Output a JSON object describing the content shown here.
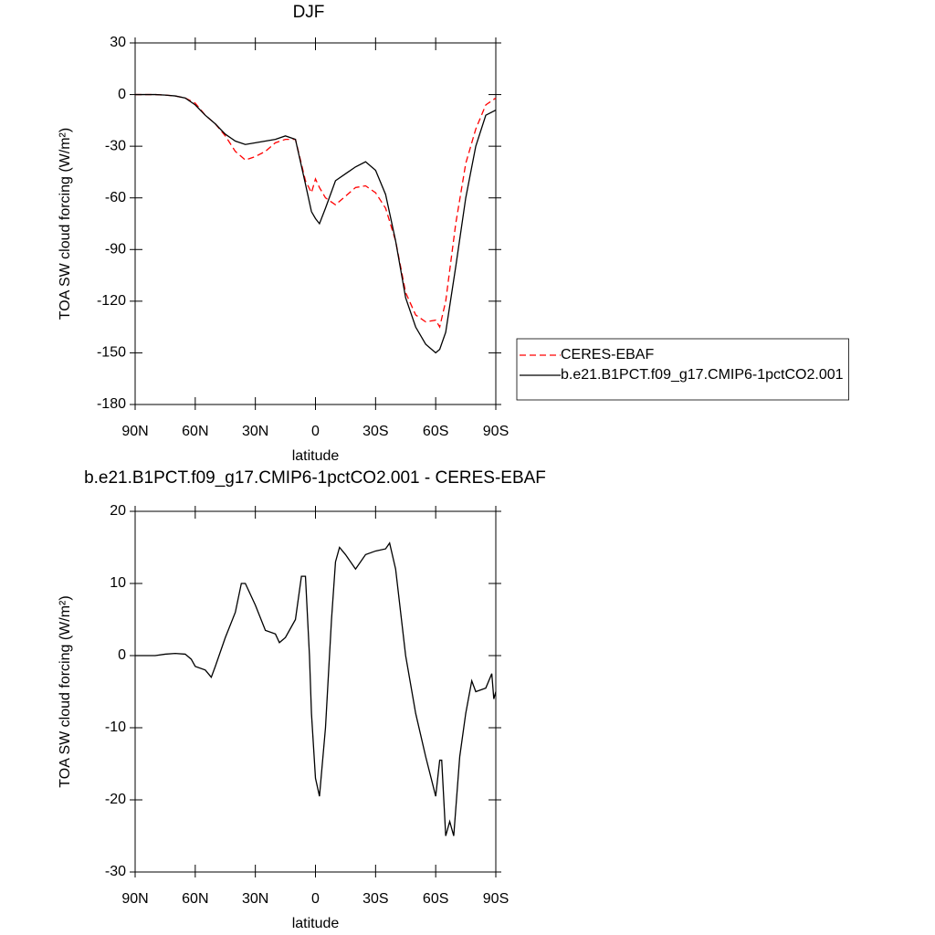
{
  "chart_data": [
    {
      "type": "line",
      "title": "DJF",
      "x_label": "latitude",
      "y_label": "TOA SW cloud forcing (W/m²)",
      "x": [
        90,
        85,
        80,
        75,
        70,
        65,
        60,
        55,
        50,
        45,
        40,
        35,
        30,
        25,
        20,
        15,
        10,
        5,
        2,
        0,
        -2,
        -5,
        -10,
        -15,
        -20,
        -25,
        -30,
        -35,
        -40,
        -45,
        -50,
        -55,
        -60,
        -62,
        -65,
        -70,
        -75,
        -80,
        -85,
        -90
      ],
      "series": [
        {
          "name": "CERES-EBAF",
          "color": "#ff0000",
          "dashed": true,
          "values": [
            0,
            0,
            0,
            -0.3,
            -0.8,
            -2,
            -5,
            -12,
            -17,
            -24,
            -33,
            -38,
            -36,
            -33,
            -28,
            -26,
            -26,
            -50,
            -57,
            -49,
            -54,
            -60,
            -64,
            -59,
            -54,
            -53,
            -57,
            -66,
            -85,
            -115,
            -128,
            -132,
            -131,
            -135,
            -120,
            -75,
            -40,
            -20,
            -6,
            -2
          ]
        },
        {
          "name": "b.e21.B1PCT.f09_g17.CMIP6-1pctCO2.001",
          "color": "#000000",
          "dashed": false,
          "values": [
            0,
            0,
            0,
            -0.3,
            -0.8,
            -2,
            -6,
            -12,
            -17,
            -23,
            -27,
            -29,
            -28,
            -27,
            -26,
            -24,
            -26,
            -52,
            -68,
            -72,
            -75,
            -66,
            -50,
            -46,
            -42,
            -39,
            -44,
            -58,
            -85,
            -118,
            -135,
            -145,
            -150,
            -148,
            -138,
            -100,
            -60,
            -30,
            -12,
            -9
          ]
        }
      ],
      "xlim": [
        90,
        -90
      ],
      "xticks": [
        {
          "value": 90,
          "label": "90N"
        },
        {
          "value": 60,
          "label": "60N"
        },
        {
          "value": 30,
          "label": "30N"
        },
        0,
        {
          "value": -30,
          "label": "30S"
        },
        {
          "value": -60,
          "label": "60S"
        },
        {
          "value": -90,
          "label": "90S"
        }
      ],
      "ylim": [
        -180,
        30
      ],
      "yticks": [
        -180,
        -150,
        -120,
        -90,
        -60,
        -30,
        0,
        30
      ],
      "legend": "right"
    },
    {
      "type": "line",
      "title": "b.e21.B1PCT.f09_g17.CMIP6-1pctCO2.001 - CERES-EBAF",
      "x_label": "latitude",
      "y_label": "TOA SW cloud forcing (W/m²)",
      "x": [
        90,
        85,
        80,
        75,
        70,
        65,
        62,
        60,
        55,
        52,
        50,
        45,
        40,
        37,
        35,
        30,
        25,
        20,
        18,
        15,
        10,
        7,
        5,
        3,
        2,
        0,
        -2,
        -5,
        -8,
        -10,
        -12,
        -15,
        -20,
        -25,
        -30,
        -35,
        -37,
        -40,
        -45,
        -50,
        -55,
        -60,
        -62,
        -63,
        -65,
        -67,
        -69,
        -72,
        -75,
        -78,
        -80,
        -85,
        -88,
        -89,
        -90
      ],
      "series": [
        {
          "color": "#000000",
          "dashed": false,
          "values": [
            0,
            0,
            0,
            0.2,
            0.3,
            0.2,
            -0.5,
            -1.5,
            -2,
            -3,
            -1.5,
            2.5,
            6,
            10,
            10,
            7,
            3.5,
            3,
            1.8,
            2.5,
            5,
            11,
            11,
            0,
            -8,
            -17,
            -19.5,
            -10,
            5,
            13,
            15,
            14,
            12,
            14,
            14.5,
            14.8,
            15.6,
            12,
            0,
            -8,
            -14,
            -19.5,
            -14.5,
            -14.5,
            -25,
            -23,
            -25,
            -14,
            -8,
            -3.5,
            -5,
            -4.5,
            -2.5,
            -6,
            -5
          ]
        }
      ],
      "xlim": [
        90,
        -90
      ],
      "xticks": [
        {
          "value": 90,
          "label": "90N"
        },
        {
          "value": 60,
          "label": "60N"
        },
        {
          "value": 30,
          "label": "30N"
        },
        0,
        {
          "value": -30,
          "label": "30S"
        },
        {
          "value": -60,
          "label": "60S"
        },
        {
          "value": -90,
          "label": "90S"
        }
      ],
      "ylim": [
        -30,
        20
      ],
      "yticks": [
        -30,
        -20,
        -10,
        0,
        10,
        20
      ]
    }
  ]
}
